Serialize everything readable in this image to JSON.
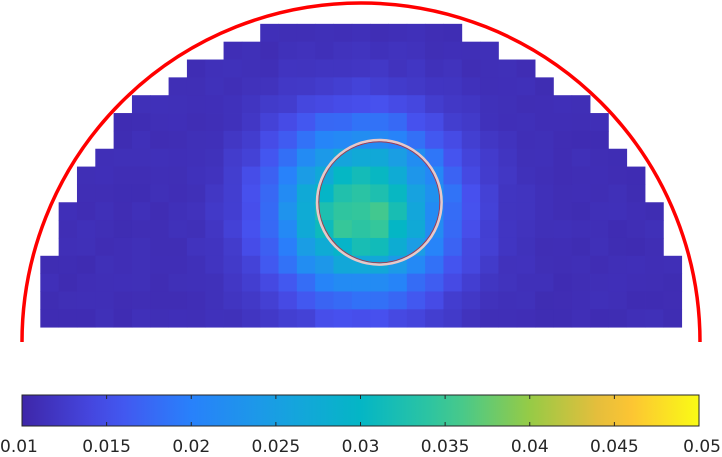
{
  "chart_data": {
    "type": "heatmap",
    "title": "",
    "xlabel": "",
    "ylabel": "",
    "grid": false,
    "colormap": "parula",
    "color_range": [
      0.01,
      0.05
    ],
    "background_value": 0.011,
    "cell_rows": 19,
    "cell_cols": 37,
    "hotspot": {
      "peak_value": 0.036,
      "row": 11,
      "col": 18,
      "spread": 3.2
    },
    "outline": {
      "shape": "semicircle",
      "color": "#ff0000"
    },
    "inclusion": {
      "shape": "circle",
      "edge_color": "#e8c8c8",
      "row": 11,
      "col": 19.5,
      "radius_cells": 3.4
    },
    "colorbar": {
      "ticks": [
        0.01,
        0.015,
        0.02,
        0.025,
        0.03,
        0.035,
        0.04,
        0.045,
        0.05
      ],
      "tick_labels": [
        "0.01",
        "0.015",
        "0.02",
        "0.025",
        "0.03",
        "0.035",
        "0.04",
        "0.045",
        "0.05"
      ]
    }
  }
}
